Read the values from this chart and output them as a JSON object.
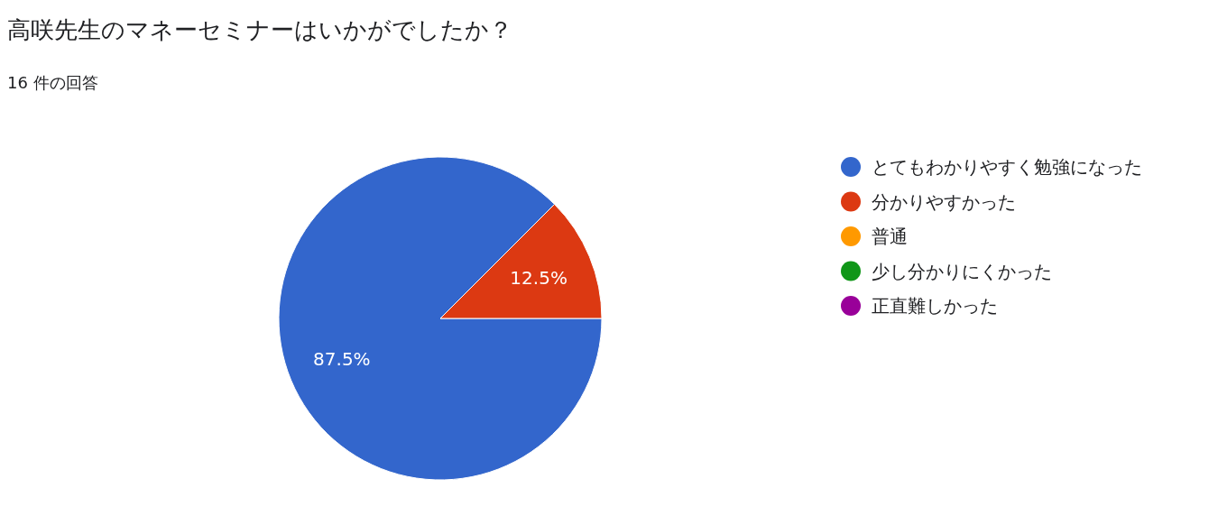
{
  "chart_data": {
    "type": "pie",
    "title": "高咲先生のマネーセミナーはいかがでしたか？",
    "subtitle": "16 件の回答",
    "categories": [
      "とてもわかりやすく勉強になった",
      "分かりやすかった",
      "普通",
      "少し分かりにくかった",
      "正直難しかった"
    ],
    "values": [
      87.5,
      12.5,
      0,
      0,
      0
    ],
    "colors": [
      "#3366cc",
      "#dc3912",
      "#ff9900",
      "#109618",
      "#990099"
    ],
    "value_labels": [
      "87.5%",
      "12.5%",
      null,
      null,
      null
    ],
    "legend": "right"
  }
}
